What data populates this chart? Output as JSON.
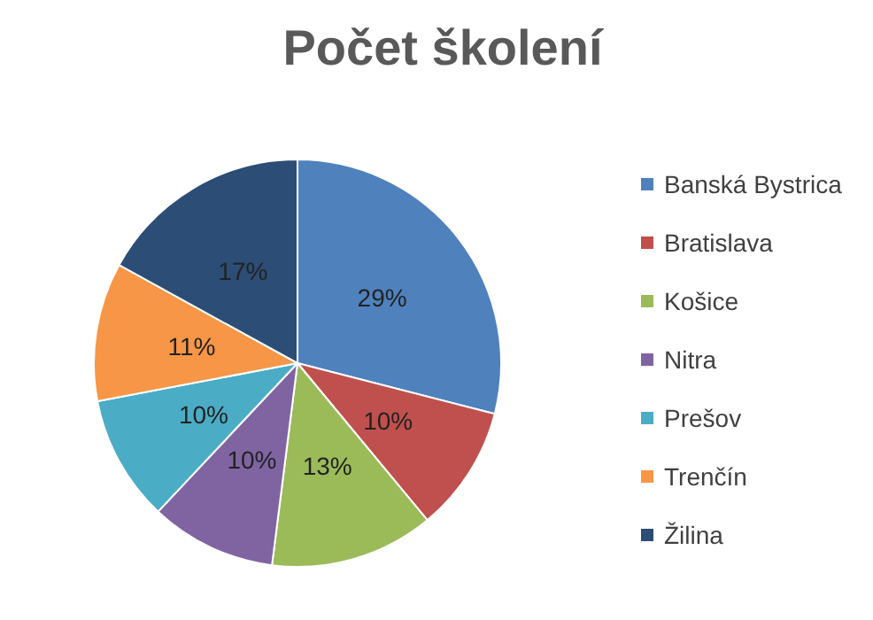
{
  "chart_data": {
    "type": "pie",
    "title": "Počet školení",
    "categories": [
      "Banská Bystrica",
      "Bratislava",
      "Košice",
      "Nitra",
      "Prešov",
      "Trenčín",
      "Žilina"
    ],
    "values": [
      29,
      10,
      13,
      10,
      10,
      11,
      17
    ],
    "colors": [
      "#4f81bd",
      "#c0504d",
      "#9bbb59",
      "#8064a2",
      "#4bacc6",
      "#f79646",
      "#2c4d75"
    ],
    "value_labels": [
      "29%",
      "10%",
      "13%",
      "10%",
      "10%",
      "11%",
      "17%"
    ],
    "legend": "right"
  }
}
